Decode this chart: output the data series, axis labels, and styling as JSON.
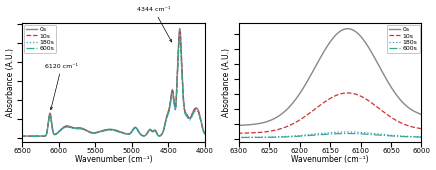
{
  "left": {
    "xlim": [
      6500,
      4000
    ],
    "xlabel": "Wavenumber (cm⁻¹)",
    "ylabel": "Absorbance (A.U.)",
    "ann1_text": "6120 cm⁻¹",
    "ann2_text": "4344 cm⁻¹",
    "xticks": [
      6500,
      6000,
      5500,
      5000,
      4500,
      4000
    ]
  },
  "right": {
    "xlim": [
      6300,
      6000
    ],
    "xlabel": "Wavenumber (cm⁻¹)",
    "ylabel": "Absorbance (A.U.)",
    "xticks": [
      6300,
      6250,
      6200,
      6150,
      6100,
      6050,
      6000
    ]
  },
  "legend_labels": [
    "0s",
    "10s",
    "180s",
    "600s"
  ],
  "colors": [
    "#888888",
    "#cc3333",
    "#3399cc",
    "#33aa88"
  ],
  "linestyles": [
    "-",
    "--",
    ":",
    "-."
  ],
  "linewidths": [
    1.0,
    0.9,
    0.9,
    0.9
  ]
}
